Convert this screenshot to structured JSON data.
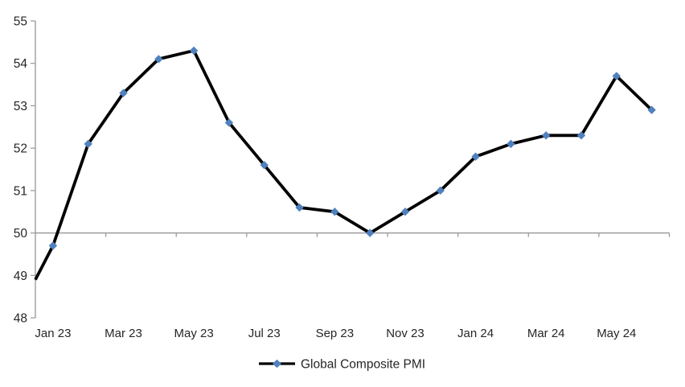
{
  "chart_data": {
    "type": "line",
    "title": "",
    "x": [
      "Jan 23",
      "Feb 23",
      "Mar 23",
      "Apr 23",
      "May 23",
      "Jun 23",
      "Jul 23",
      "Aug 23",
      "Sep 23",
      "Oct 23",
      "Nov 23",
      "Dec 23",
      "Jan 24",
      "Feb 24",
      "Mar 24",
      "Apr 24",
      "May 24",
      "Jun 24"
    ],
    "series": [
      {
        "name": "Global Composite PMI",
        "values": [
          49.7,
          52.1,
          53.3,
          54.1,
          54.3,
          52.6,
          51.6,
          50.6,
          50.5,
          50.0,
          50.5,
          51.0,
          51.8,
          52.1,
          52.3,
          52.3,
          53.7,
          52.9
        ]
      }
    ],
    "clipped_lead_in_value": 48.9,
    "ylim": [
      48,
      55
    ],
    "yticks": [
      "48",
      "49",
      "50",
      "51",
      "52",
      "53",
      "54",
      "55"
    ],
    "axis_cross_value": 50,
    "x_axis_shown_labels": [
      "Jan 23",
      "Mar 23",
      "May 23",
      "Jul 23",
      "Sep 23",
      "Nov 23",
      "Jan 24",
      "Mar 24",
      "May 24"
    ],
    "x_label_month_indices": [
      0,
      2,
      4,
      6,
      8,
      10,
      12,
      14,
      16
    ],
    "x_boundary_tick_every_n_months": 2,
    "grid": "off",
    "legend": {
      "label": "Global Composite PMI",
      "position": "bottom-center",
      "marker": "diamond"
    },
    "colors": {
      "line": "#000000",
      "marker": "#4F81BD",
      "axis": "#969696",
      "text": "#262626"
    }
  }
}
